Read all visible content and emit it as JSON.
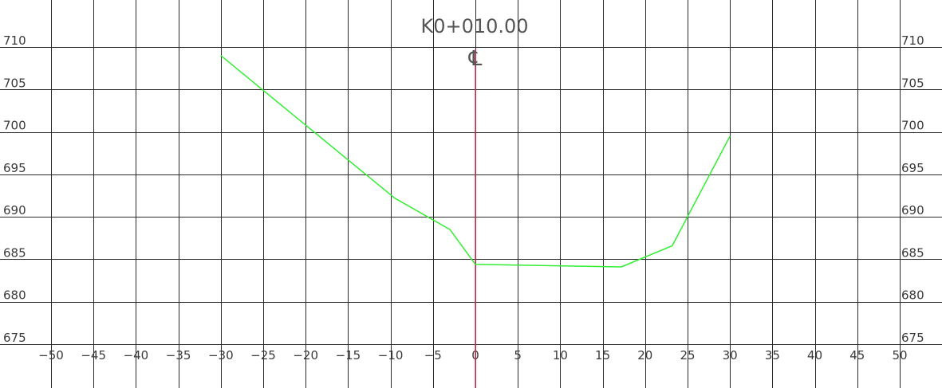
{
  "chart_data": {
    "type": "line",
    "title": "K0+010.00",
    "subtitle": "℄",
    "xlabel": "",
    "ylabel": "",
    "xlim": [
      -50,
      50
    ],
    "ylim": [
      675,
      710
    ],
    "x_ticks": [
      -50,
      -45,
      -40,
      -35,
      -30,
      -25,
      -20,
      -15,
      -10,
      -5,
      0,
      5,
      10,
      15,
      20,
      25,
      30,
      35,
      40,
      45,
      50
    ],
    "y_ticks": [
      675,
      680,
      685,
      690,
      695,
      700,
      705,
      710
    ],
    "x_tick_labels": [
      "−50",
      "−45",
      "−40",
      "−35",
      "−30",
      "−25",
      "−20",
      "−15",
      "−10",
      "−5",
      "0",
      "5",
      "10",
      "15",
      "20",
      "25",
      "30",
      "35",
      "40",
      "45",
      "50"
    ],
    "y_tick_labels": [
      "675",
      "680",
      "685",
      "690",
      "695",
      "700",
      "705",
      "710"
    ],
    "grid": true,
    "centerline": {
      "x": 0,
      "color": "#e0305a"
    },
    "series": [
      {
        "color": "#33ee33",
        "points": [
          [
            -30,
            709.0
          ],
          [
            -9.5,
            692.2
          ],
          [
            -3.0,
            688.5
          ],
          [
            0,
            684.4
          ],
          [
            17.2,
            684.1
          ],
          [
            23.2,
            686.6
          ],
          [
            30,
            699.5
          ]
        ]
      }
    ]
  }
}
